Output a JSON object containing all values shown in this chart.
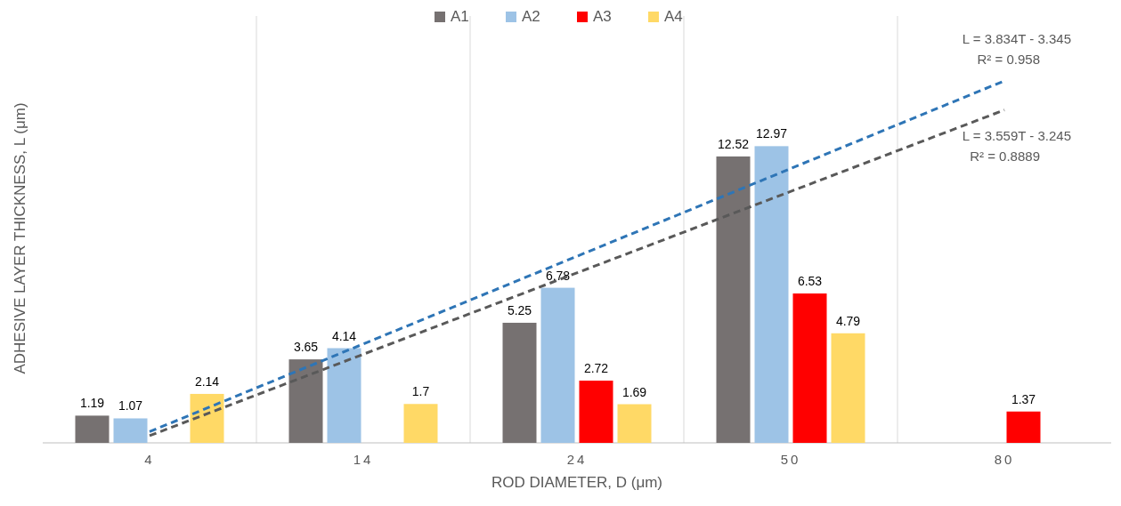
{
  "chart_data": {
    "type": "bar",
    "categories": [
      "4",
      "14",
      "24",
      "50",
      "80"
    ],
    "series": [
      {
        "name": "A1",
        "color": "#767171",
        "values": [
          1.19,
          3.65,
          5.25,
          12.52,
          null
        ],
        "value_labels": [
          "1.19",
          "3.65",
          "5.25",
          "12.52",
          null
        ]
      },
      {
        "name": "A2",
        "color": "#9dc3e6",
        "values": [
          1.07,
          4.14,
          6.78,
          12.97,
          null
        ],
        "value_labels": [
          "1.07",
          "4.14",
          "6.78",
          "12.97",
          null
        ]
      },
      {
        "name": "A3",
        "color": "#ff0000",
        "values": [
          null,
          null,
          2.72,
          6.53,
          1.37
        ],
        "value_labels": [
          null,
          null,
          "2.72",
          "6.53",
          "1.37"
        ]
      },
      {
        "name": "A4",
        "color": "#ffd966",
        "values": [
          2.14,
          1.7,
          1.69,
          4.79,
          null
        ],
        "value_labels": [
          "2.14",
          "1.7",
          "1.69",
          "4.79",
          null
        ]
      },
      {
        "type": "line",
        "color": "#2e75b6",
        "x": [
          "4",
          "80"
        ],
        "values": [
          0.489,
          15.825
        ],
        "line_style": "dashed"
      },
      {
        "type": "line",
        "color": "#595959",
        "x": [
          "4",
          "80"
        ],
        "values": [
          0.314,
          14.55
        ],
        "line_style": "dashed"
      }
    ],
    "xlabel": "ROD DIAMETER, D (μm)",
    "ylabel": "ADHESIVE LAYER THICKNESS, L (μm)",
    "annotations": [
      "L = 3.834T - 3.345",
      "R² = 0.958",
      "L = 3.559T - 3.245",
      "R² = 0.8889"
    ],
    "grid": "x",
    "legend": "top",
    "tick_labels": "x"
  }
}
